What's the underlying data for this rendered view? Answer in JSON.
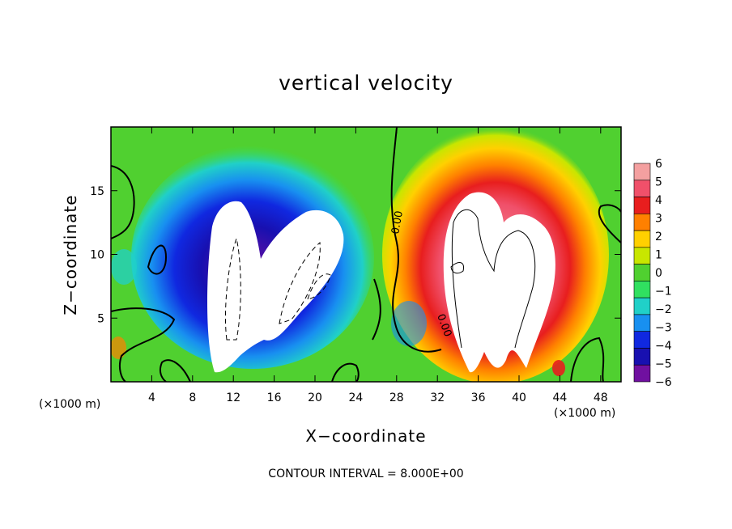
{
  "chart_data": {
    "type": "heatmap",
    "title": "vertical velocity",
    "xlabel": "X−coordinate",
    "ylabel": "Z−coordinate",
    "x_unit_left": "(×1000 m)",
    "x_unit_right": "(×1000 m)",
    "xlim": [
      0,
      50
    ],
    "ylim": [
      0,
      20
    ],
    "x_ticks": [
      4,
      8,
      12,
      16,
      20,
      24,
      28,
      32,
      36,
      40,
      44,
      48
    ],
    "y_ticks": [
      5,
      10,
      15
    ],
    "colorbar": {
      "levels": [
        6,
        5,
        4,
        3,
        2,
        1,
        0,
        -1,
        -2,
        -3,
        -4,
        -5,
        -6
      ],
      "labels": [
        "6",
        "5",
        "4",
        "3",
        "2",
        "1",
        "0",
        "−1",
        "−2",
        "−3",
        "−4",
        "−5",
        "−6"
      ],
      "colors": [
        "#f4a0a0",
        "#f0506a",
        "#e81e1e",
        "#ff8000",
        "#ffd000",
        "#c8e600",
        "#50d030",
        "#30e060",
        "#20d0c8",
        "#1890f0",
        "#1028e0",
        "#1810b0",
        "#7010a0"
      ]
    },
    "contour_label": "0.00",
    "contour_interval": "CONTOUR INTERVAL = 8.000E+00",
    "features": [
      {
        "name": "downdraft",
        "sign": "negative",
        "x_range": [
          9,
          24
        ],
        "z_range": [
          0.5,
          17
        ],
        "min_value": -6
      },
      {
        "name": "updraft",
        "sign": "positive",
        "x_range": [
          31,
          45
        ],
        "z_range": [
          0.5,
          18
        ],
        "max_value": 6
      }
    ]
  }
}
